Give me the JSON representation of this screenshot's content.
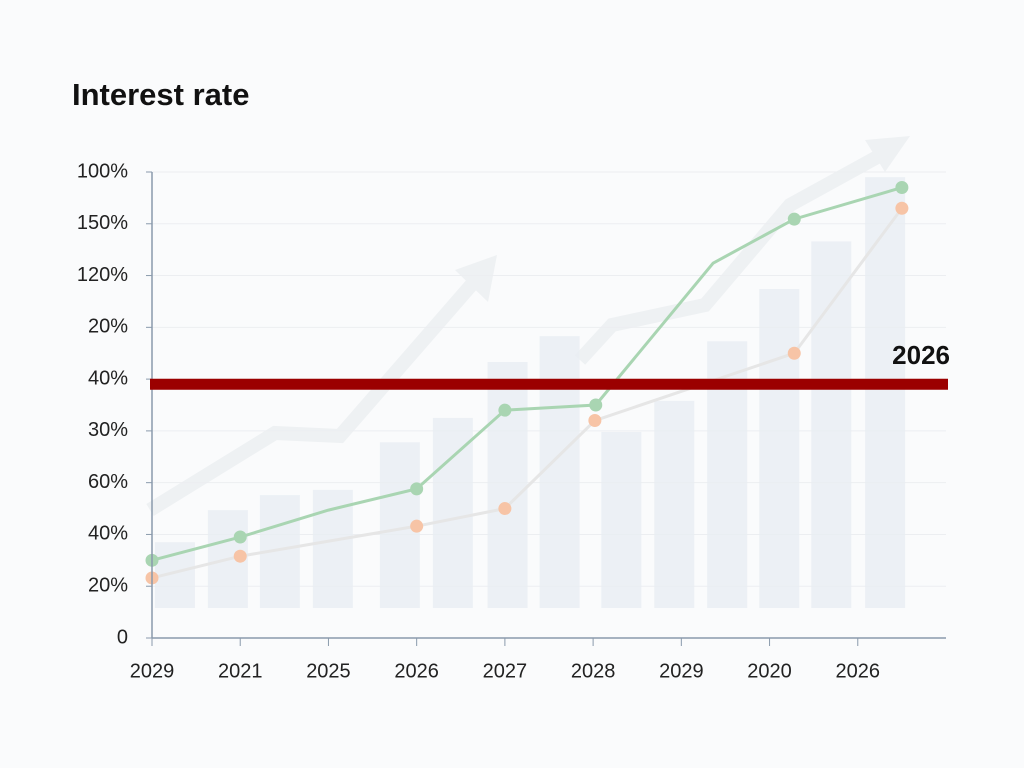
{
  "chart_data": {
    "type": "line",
    "title": "Interest rate",
    "xlim": [
      0,
      9
    ],
    "xticks": [
      {
        "value": 0,
        "label": "2029"
      },
      {
        "value": 1,
        "label": "2021"
      },
      {
        "value": 2,
        "label": "2025"
      },
      {
        "value": 3,
        "label": "2026"
      },
      {
        "value": 4,
        "label": "2027"
      },
      {
        "value": 5,
        "label": "2028"
      },
      {
        "value": 6,
        "label": "2029"
      },
      {
        "value": 7,
        "label": "2020"
      },
      {
        "value": 8,
        "label": "2026"
      }
    ],
    "ylim": [
      0,
      9
    ],
    "yticks": [
      0,
      {
        "value": 1,
        "label": "20%"
      },
      {
        "value": 2,
        "label": "40%"
      },
      {
        "value": 3,
        "label": "60%"
      },
      {
        "value": 4,
        "label": "30%"
      },
      {
        "value": 5,
        "label": "40%"
      },
      {
        "value": 6,
        "label": "20%"
      },
      {
        "value": 7,
        "label": "120%"
      },
      {
        "value": 8,
        "label": "150%"
      },
      {
        "value": 9,
        "label": "100%"
      }
    ],
    "grid": true,
    "series": [
      {
        "type": "bar",
        "color": "#e9edf2",
        "x": [
          0.26,
          0.86,
          1.45,
          2.05,
          2.81,
          3.41,
          4.03,
          4.62,
          5.32,
          5.92,
          6.52,
          7.11,
          7.7,
          8.31
        ],
        "values": [
          1.85,
          2.47,
          2.76,
          2.86,
          3.78,
          4.25,
          5.33,
          5.83,
          3.98,
          4.58,
          5.73,
          6.74,
          7.66,
          8.9
        ]
      },
      {
        "type": "line",
        "color": "#e6e6e6",
        "marker_color": "#f7c4a6",
        "x": [
          0,
          1,
          3,
          4,
          5.02,
          7.28,
          8.5
        ],
        "values": [
          1.16,
          1.58,
          2.16,
          2.5,
          4.2,
          5.5,
          8.3
        ]
      },
      {
        "type": "line",
        "color": "#a9d5b2",
        "marker_color": "#a9d5b2",
        "x": [
          0,
          1,
          2,
          3,
          4,
          5.03,
          6.36,
          7.28,
          8.5
        ],
        "values": [
          1.5,
          1.95,
          2.47,
          2.88,
          4.4,
          4.5,
          7.24,
          8.09,
          8.7
        ],
        "markers": [
          true,
          true,
          false,
          true,
          true,
          true,
          false,
          true,
          true
        ]
      }
    ],
    "reference_line": {
      "value": 4.9,
      "label": "2026",
      "color": "#9b0000"
    }
  }
}
